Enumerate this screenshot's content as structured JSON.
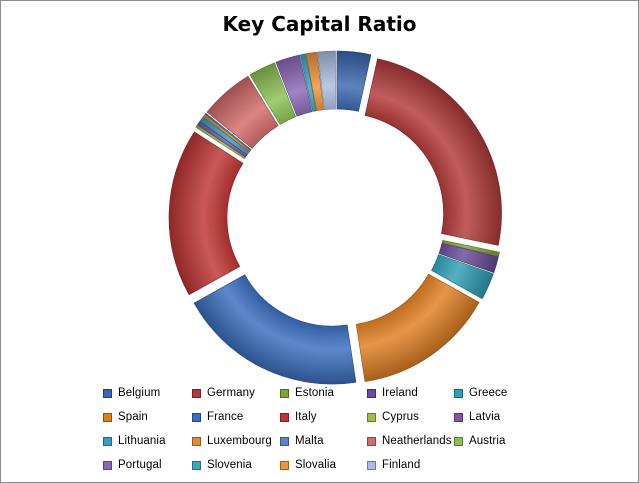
{
  "chart_data": {
    "type": "pie",
    "variant": "exploded-donut",
    "title": "Key Capital Ratio",
    "legend_position": "bottom",
    "series": [
      {
        "name": "Belgium",
        "value": 2.5,
        "color": "#3a66b0"
      },
      {
        "name": "Germany",
        "value": 18.0,
        "color": "#b23a3a"
      },
      {
        "name": "Estonia",
        "value": 0.3,
        "color": "#7fa43a"
      },
      {
        "name": "Ireland",
        "value": 1.2,
        "color": "#6a4a9a"
      },
      {
        "name": "Greece",
        "value": 2.0,
        "color": "#2f9fb5"
      },
      {
        "name": "Spain",
        "value": 10.5,
        "color": "#e07f22"
      },
      {
        "name": "France",
        "value": 14.0,
        "color": "#3a6fbf"
      },
      {
        "name": "Italy",
        "value": 12.5,
        "color": "#c03434"
      },
      {
        "name": "Cyprus",
        "value": 0.2,
        "color": "#9bbd4a"
      },
      {
        "name": "Latvia",
        "value": 0.3,
        "color": "#7d56a8"
      },
      {
        "name": "Lithuania",
        "value": 0.4,
        "color": "#3b9ec0"
      },
      {
        "name": "Luxembourg",
        "value": 0.2,
        "color": "#e38a33"
      },
      {
        "name": "Malta",
        "value": 0.1,
        "color": "#5b86c8"
      },
      {
        "name": "Neatherlands",
        "value": 4.0,
        "color": "#d46a6a"
      },
      {
        "name": "Austria",
        "value": 2.0,
        "color": "#8cc152"
      },
      {
        "name": "Portugal",
        "value": 1.8,
        "color": "#8a68b8"
      },
      {
        "name": "Slovenia",
        "value": 0.4,
        "color": "#3aa6c2"
      },
      {
        "name": "Slovalia",
        "value": 0.8,
        "color": "#f0933a"
      },
      {
        "name": "Finland",
        "value": 1.3,
        "color": "#a9bde0"
      }
    ]
  }
}
